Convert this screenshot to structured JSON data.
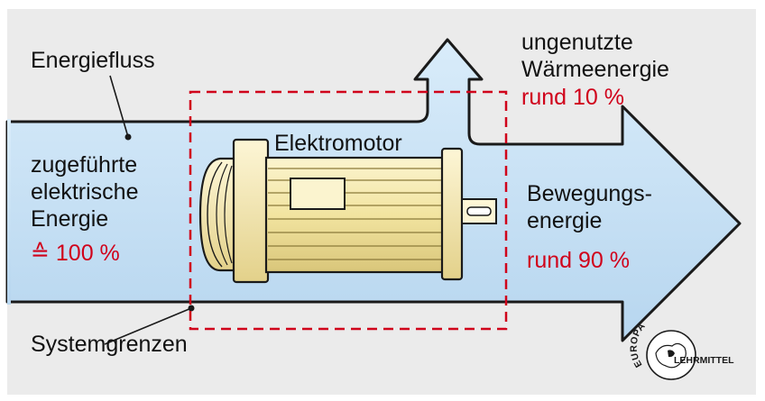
{
  "labels": {
    "energiefluss": "Energiefluss",
    "systemgrenzen": "Systemgrenzen",
    "elektromotor": "Elektromotor",
    "input_lines": [
      "zugeführte",
      "elektrische",
      "Energie"
    ],
    "input_value": "≙ 100 %",
    "heat_lines": [
      "ungenutzte",
      "Wärmeenergie"
    ],
    "heat_value": "rund 10 %",
    "motion_lines": [
      "Bewegungs-",
      "energie"
    ],
    "motion_value": "rund 90 %"
  },
  "logo": {
    "top_text": "EUROPA",
    "side_text": "LEHRMITTEL"
  },
  "colors": {
    "background": "#ebebeb",
    "flow_fill": "#c6e0f4",
    "flow_stroke": "#1a1a1a",
    "boundary": "#d0021b",
    "highlight_text": "#d0021b",
    "motor_fill": "#f2e6a8",
    "motor_stroke": "#1a1a1a"
  }
}
